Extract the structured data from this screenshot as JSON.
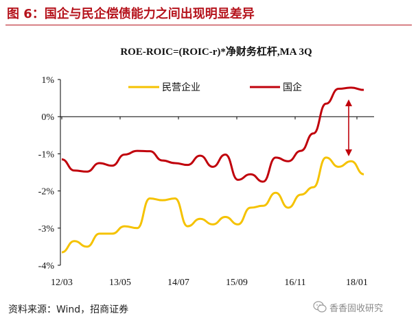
{
  "figure": {
    "title": "图 6：国企与民企偿债能力之间出现明显差异",
    "source": "资料来源：Wind，招商证券",
    "watermark": "香香固收研究"
  },
  "colors": {
    "title": "#b5121b",
    "series_private": "#f5c200",
    "series_soe": "#c0000b",
    "arrow": "#c0000b"
  },
  "chart_data": {
    "type": "line",
    "title": "ROE-ROIC=(ROIC-r)*净财务杠杆,MA 3Q",
    "xlabel": "",
    "ylabel": "",
    "x_tick_labels": [
      "12/03",
      "13/05",
      "14/07",
      "15/09",
      "16/11",
      "18/01"
    ],
    "y_tick_labels": [
      "-4%",
      "-3%",
      "-2%",
      "-1%",
      "0%",
      "1%"
    ],
    "ylim": [
      -4,
      1
    ],
    "grid": false,
    "legend": "top",
    "series": [
      {
        "name": "民营企业",
        "values": [
          -3.65,
          -3.35,
          -3.5,
          -3.15,
          -3.15,
          -2.95,
          -3.0,
          -2.2,
          -2.25,
          -2.2,
          -2.95,
          -2.75,
          -2.9,
          -2.7,
          -2.9,
          -2.45,
          -2.4,
          -2.05,
          -2.45,
          -2.1,
          -1.9,
          -1.1,
          -1.35,
          -1.2,
          -1.55
        ]
      },
      {
        "name": "国企",
        "values": [
          -1.15,
          -1.45,
          -1.48,
          -1.25,
          -1.32,
          -1.02,
          -0.92,
          -0.93,
          -1.18,
          -1.25,
          -1.3,
          -1.05,
          -1.35,
          -1.02,
          -1.7,
          -1.55,
          -1.75,
          -1.1,
          -1.2,
          -0.92,
          -0.45,
          0.35,
          0.75,
          0.78,
          0.72
        ]
      }
    ],
    "annotation": "double-headed arrow between series at 18/01"
  }
}
